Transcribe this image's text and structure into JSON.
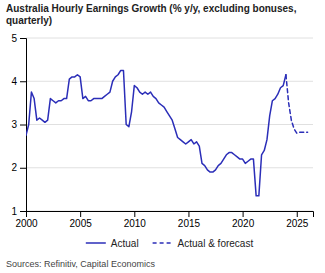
{
  "chart_data": {
    "type": "line",
    "title": "Australia Hourly Earnings Growth (% y/y, excluding bonuses,\nquarterly)",
    "annotations": [
      "Sources: Refinitiv, Capital Economics"
    ],
    "xlim": [
      2000.0,
      2026.5
    ],
    "xticks": [
      2000,
      2005,
      2010,
      2015,
      2020,
      2025
    ],
    "ylim": [
      1,
      5
    ],
    "yticks": [
      1,
      2,
      3,
      4,
      5
    ],
    "grid": true,
    "legend": "bottom",
    "series": [
      {
        "name": "Actual",
        "color": "#2B2EB8",
        "line_style": "solid",
        "x": [
          2000.0,
          2000.25,
          2000.5,
          2000.75,
          2001.0,
          2001.25,
          2001.5,
          2001.75,
          2002.0,
          2002.25,
          2002.5,
          2002.75,
          2003.0,
          2003.25,
          2003.5,
          2003.75,
          2004.0,
          2004.25,
          2004.5,
          2004.75,
          2005.0,
          2005.25,
          2005.5,
          2005.75,
          2006.0,
          2006.25,
          2006.5,
          2006.75,
          2007.0,
          2007.25,
          2007.5,
          2007.75,
          2008.0,
          2008.25,
          2008.5,
          2008.75,
          2009.0,
          2009.25,
          2009.5,
          2009.75,
          2010.0,
          2010.25,
          2010.5,
          2010.75,
          2011.0,
          2011.25,
          2011.5,
          2011.75,
          2012.0,
          2012.25,
          2012.5,
          2012.75,
          2013.0,
          2013.25,
          2013.5,
          2013.75,
          2014.0,
          2014.25,
          2014.5,
          2014.75,
          2015.0,
          2015.25,
          2015.5,
          2015.75,
          2016.0,
          2016.25,
          2016.5,
          2016.75,
          2017.0,
          2017.25,
          2017.5,
          2017.75,
          2018.0,
          2018.25,
          2018.5,
          2018.75,
          2019.0,
          2019.25,
          2019.5,
          2019.75,
          2020.0,
          2020.25,
          2020.5,
          2020.75,
          2021.0,
          2021.25,
          2021.5,
          2021.75,
          2022.0,
          2022.25,
          2022.5,
          2022.75,
          2023.0,
          2023.25,
          2023.5,
          2023.75,
          2024.0
        ],
        "values": [
          2.75,
          3.0,
          3.75,
          3.6,
          3.1,
          3.15,
          3.1,
          3.05,
          3.1,
          3.6,
          3.55,
          3.5,
          3.55,
          3.55,
          3.6,
          3.6,
          4.05,
          4.1,
          4.1,
          4.15,
          4.1,
          3.6,
          3.65,
          3.55,
          3.55,
          3.6,
          3.6,
          3.6,
          3.6,
          3.65,
          3.7,
          3.75,
          4.0,
          4.1,
          4.15,
          4.25,
          4.25,
          3.0,
          2.95,
          3.3,
          3.9,
          3.85,
          3.75,
          3.7,
          3.75,
          3.7,
          3.75,
          3.65,
          3.6,
          3.5,
          3.45,
          3.4,
          3.3,
          3.2,
          3.1,
          2.9,
          2.7,
          2.65,
          2.6,
          2.55,
          2.6,
          2.65,
          2.55,
          2.6,
          2.5,
          2.1,
          2.05,
          1.95,
          1.9,
          1.9,
          1.95,
          2.05,
          2.1,
          2.2,
          2.3,
          2.35,
          2.35,
          2.3,
          2.25,
          2.2,
          2.2,
          2.1,
          2.15,
          2.2,
          2.2,
          1.35,
          1.35,
          2.3,
          2.4,
          2.65,
          3.2,
          3.55,
          3.6,
          3.7,
          3.85,
          3.9,
          4.15
        ]
      },
      {
        "name": "Actual & forecast",
        "color": "#2B2EB8",
        "line_style": "dashed",
        "x": [
          2024.0,
          2024.25,
          2024.5,
          2024.75,
          2025.0,
          2025.25,
          2025.5,
          2025.75,
          2026.0
        ],
        "values": [
          4.15,
          3.5,
          3.1,
          2.9,
          2.8,
          2.82,
          2.82,
          2.82,
          2.82
        ]
      }
    ]
  }
}
